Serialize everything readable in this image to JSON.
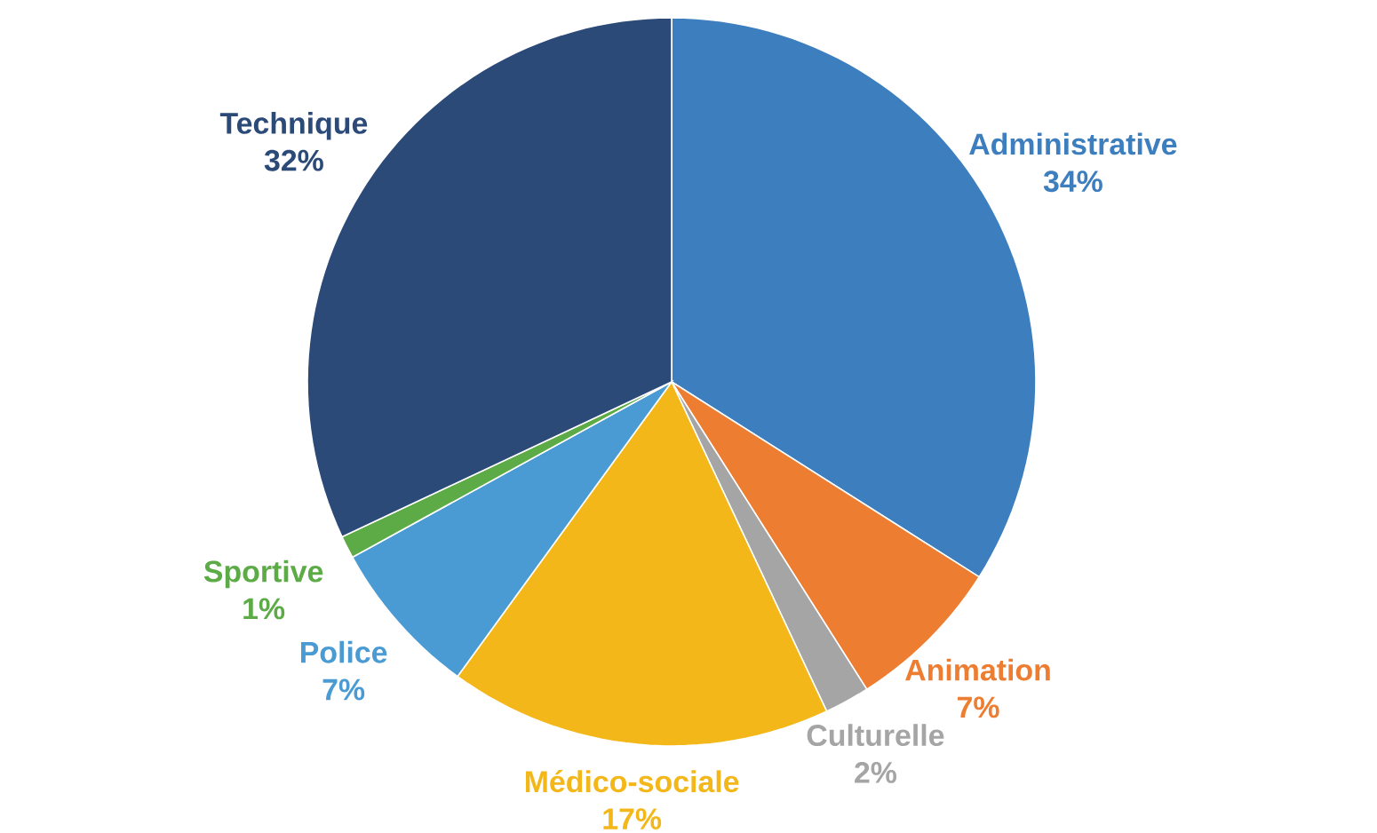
{
  "chart_data": {
    "type": "pie",
    "categories": [
      "Administrative",
      "Animation",
      "Culturelle",
      "Médico-sociale",
      "Police",
      "Sportive",
      "Technique"
    ],
    "values": [
      34,
      7,
      2,
      17,
      7,
      1,
      32
    ],
    "colors": [
      "#3d7ebf",
      "#ed7d31",
      "#a5a5a5",
      "#f4b719",
      "#4a9bd4",
      "#5cab46",
      "#2b4a78"
    ],
    "value_labels": [
      "34%",
      "7%",
      "2%",
      "17%",
      "7%",
      "1%",
      "32%"
    ]
  }
}
